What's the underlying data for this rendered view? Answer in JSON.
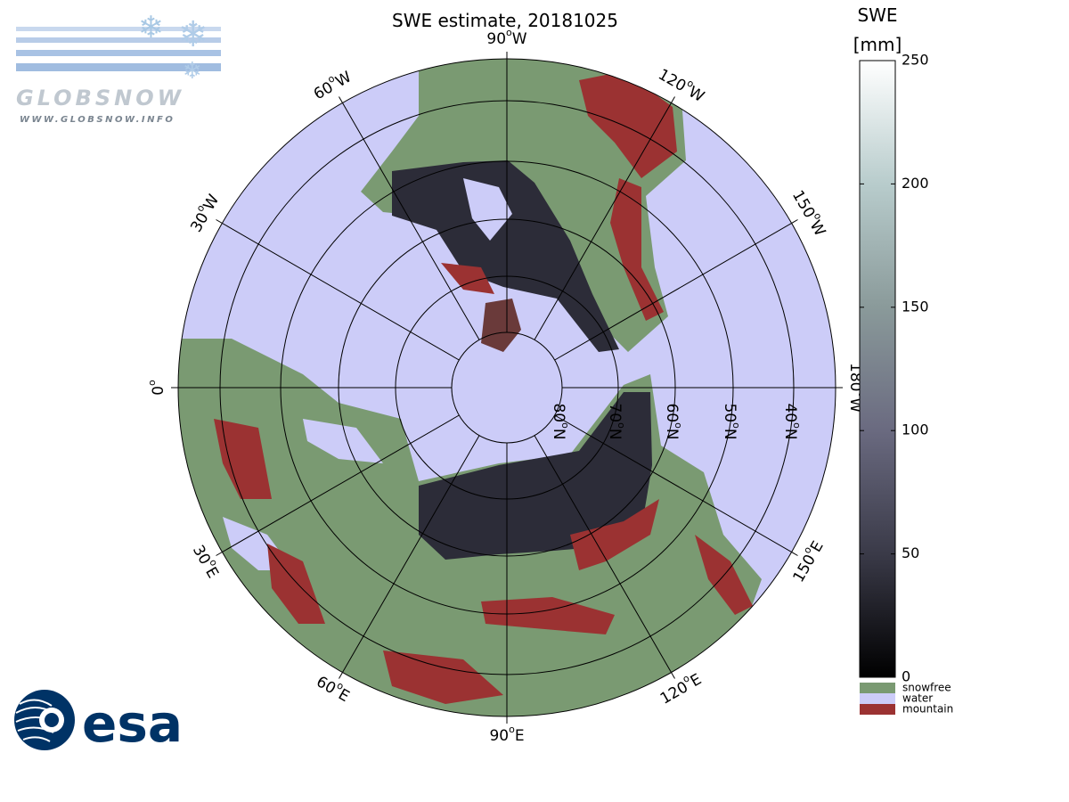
{
  "title": "SWE estimate, 20181025",
  "logos": {
    "globsnow": "GLOBSNOW",
    "url": "WWW.GLOBSNOW.INFO",
    "esa": "esa"
  },
  "map": {
    "meridians": [
      {
        "number": "0",
        "mark": "o",
        "hemi": ""
      },
      {
        "number": "30",
        "mark": "o",
        "hemi": "W"
      },
      {
        "number": "60",
        "mark": "o",
        "hemi": "W"
      },
      {
        "number": "90",
        "mark": "o",
        "hemi": "W"
      },
      {
        "number": "120",
        "mark": "o",
        "hemi": "W"
      },
      {
        "number": "150",
        "mark": "o",
        "hemi": "W"
      },
      {
        "number": "180",
        "mark": "o",
        "hemi": "W"
      },
      {
        "number": "150",
        "mark": "o",
        "hemi": "E"
      },
      {
        "number": "120",
        "mark": "o",
        "hemi": "E"
      },
      {
        "number": "90",
        "mark": "o",
        "hemi": "E"
      },
      {
        "number": "60",
        "mark": "o",
        "hemi": "E"
      },
      {
        "number": "30",
        "mark": "o",
        "hemi": "E"
      }
    ],
    "parallels": [
      {
        "number": "80",
        "mark": "o",
        "hemi": "N"
      },
      {
        "number": "70",
        "mark": "o",
        "hemi": "N"
      },
      {
        "number": "60",
        "mark": "o",
        "hemi": "N"
      },
      {
        "number": "50",
        "mark": "o",
        "hemi": "N"
      },
      {
        "number": "40",
        "mark": "o",
        "hemi": "N"
      }
    ]
  },
  "colorbar": {
    "title": [
      "SWE",
      "[mm]"
    ],
    "lim": [
      0,
      250
    ],
    "ticks": [
      0,
      50,
      100,
      150,
      200,
      250
    ],
    "colors": [
      "#000000",
      "#3a3a48",
      "#6a6a80",
      "#8a9a9a",
      "#b8cccc",
      "#ffffff"
    ],
    "legend": [
      {
        "name": "snowfree",
        "color": "#7a9a72"
      },
      {
        "name": "water",
        "color": "#ccccf8"
      },
      {
        "name": "mountain",
        "color": "#9b3232"
      }
    ]
  }
}
